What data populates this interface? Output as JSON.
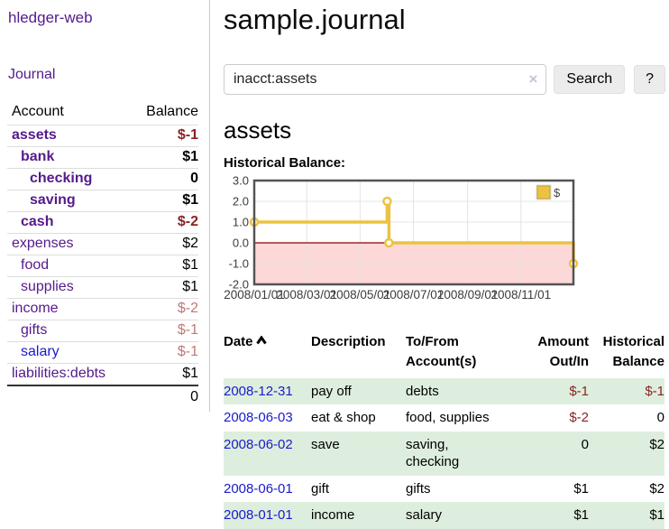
{
  "brand": "hledger-web",
  "sidebar": {
    "journal_link": "Journal",
    "accounts": {
      "header_account": "Account",
      "header_balance": "Balance",
      "rows": [
        {
          "name": "assets",
          "balance": "$-1",
          "depth": 1,
          "bold": true,
          "neg": "strong"
        },
        {
          "name": "bank",
          "balance": "$1",
          "depth": 2,
          "bold": true,
          "neg": "none"
        },
        {
          "name": "checking",
          "balance": "0",
          "depth": 3,
          "bold": true,
          "neg": "none"
        },
        {
          "name": "saving",
          "balance": "$1",
          "depth": 3,
          "bold": true,
          "neg": "none"
        },
        {
          "name": "cash",
          "balance": "$-2",
          "depth": 2,
          "bold": true,
          "neg": "strong"
        },
        {
          "name": "expenses",
          "balance": "$2",
          "depth": 1,
          "bold": false,
          "neg": "none"
        },
        {
          "name": "food",
          "balance": "$1",
          "depth": 2,
          "bold": false,
          "neg": "none"
        },
        {
          "name": "supplies",
          "balance": "$1",
          "depth": 2,
          "bold": false,
          "neg": "none"
        },
        {
          "name": "income",
          "balance": "$-2",
          "depth": 1,
          "bold": false,
          "neg": "soft"
        },
        {
          "name": "gifts",
          "balance": "$-1",
          "depth": 2,
          "bold": false,
          "neg": "soft"
        },
        {
          "name": "salary",
          "balance": "$-1",
          "depth": 2,
          "bold": false,
          "neg": "soft",
          "link_color": "blue"
        },
        {
          "name": "liabilities:debts",
          "balance": "$1",
          "depth": 1,
          "bold": false,
          "neg": "none"
        }
      ],
      "total": "0"
    }
  },
  "header": {
    "title": "sample.journal",
    "search": {
      "value": "inacct:assets",
      "clear": "×",
      "search_label": "Search",
      "help_label": "?"
    }
  },
  "account_page": {
    "heading": "assets",
    "chart_label": "Historical Balance:"
  },
  "chart_data": {
    "type": "line",
    "title": "Historical Balance",
    "step": true,
    "series": [
      {
        "name": "$",
        "color": "#edc240",
        "points": [
          {
            "x": "2008/01/01",
            "y": 1
          },
          {
            "x": "2008/06/01",
            "y": 2
          },
          {
            "x": "2008/06/03",
            "y": 0
          },
          {
            "x": "2008/12/31",
            "y": -1
          }
        ]
      }
    ],
    "x_range": [
      "2008/01/01",
      "2008/12/31"
    ],
    "x_tick_labels": [
      "2008/01/01",
      "2008/03/01",
      "2008/05/01",
      "2008/07/01",
      "2008/09/01",
      "2008/11/01"
    ],
    "y_ticks": [
      "3.0",
      "2.0",
      "1.0",
      "0.0",
      "-1.0",
      "-2.0"
    ],
    "ylim": [
      -2,
      3
    ],
    "grid": true,
    "legend": {
      "label": "$",
      "position": "top-right"
    },
    "negative_region_color": "#fcd8d8",
    "zero_line_color": "#8b0000",
    "plot_border_color": "#545454",
    "grid_color": "#e4e4e4"
  },
  "register": {
    "headers": {
      "date": "Date",
      "description": "Description",
      "tofrom": "To/From Account(s)",
      "amount": "Amount Out/In",
      "balance": "Historical Balance"
    },
    "rows": [
      {
        "date": "2008-12-31",
        "description": "pay off",
        "accounts": "debts",
        "amount": "$-1",
        "amount_neg": true,
        "balance": "$-1",
        "balance_neg": true
      },
      {
        "date": "2008-06-03",
        "description": "eat & shop",
        "accounts": "food, supplies",
        "amount": "$-2",
        "amount_neg": true,
        "balance": "0",
        "balance_neg": false
      },
      {
        "date": "2008-06-02",
        "description": "save",
        "accounts": "saving, checking",
        "amount": "0",
        "amount_neg": false,
        "balance": "$2",
        "balance_neg": false
      },
      {
        "date": "2008-06-01",
        "description": "gift",
        "accounts": "gifts",
        "amount": "$1",
        "amount_neg": false,
        "balance": "$2",
        "balance_neg": false
      },
      {
        "date": "2008-01-01",
        "description": "income",
        "accounts": "salary",
        "amount": "$1",
        "amount_neg": false,
        "balance": "$1",
        "balance_neg": false
      }
    ]
  }
}
